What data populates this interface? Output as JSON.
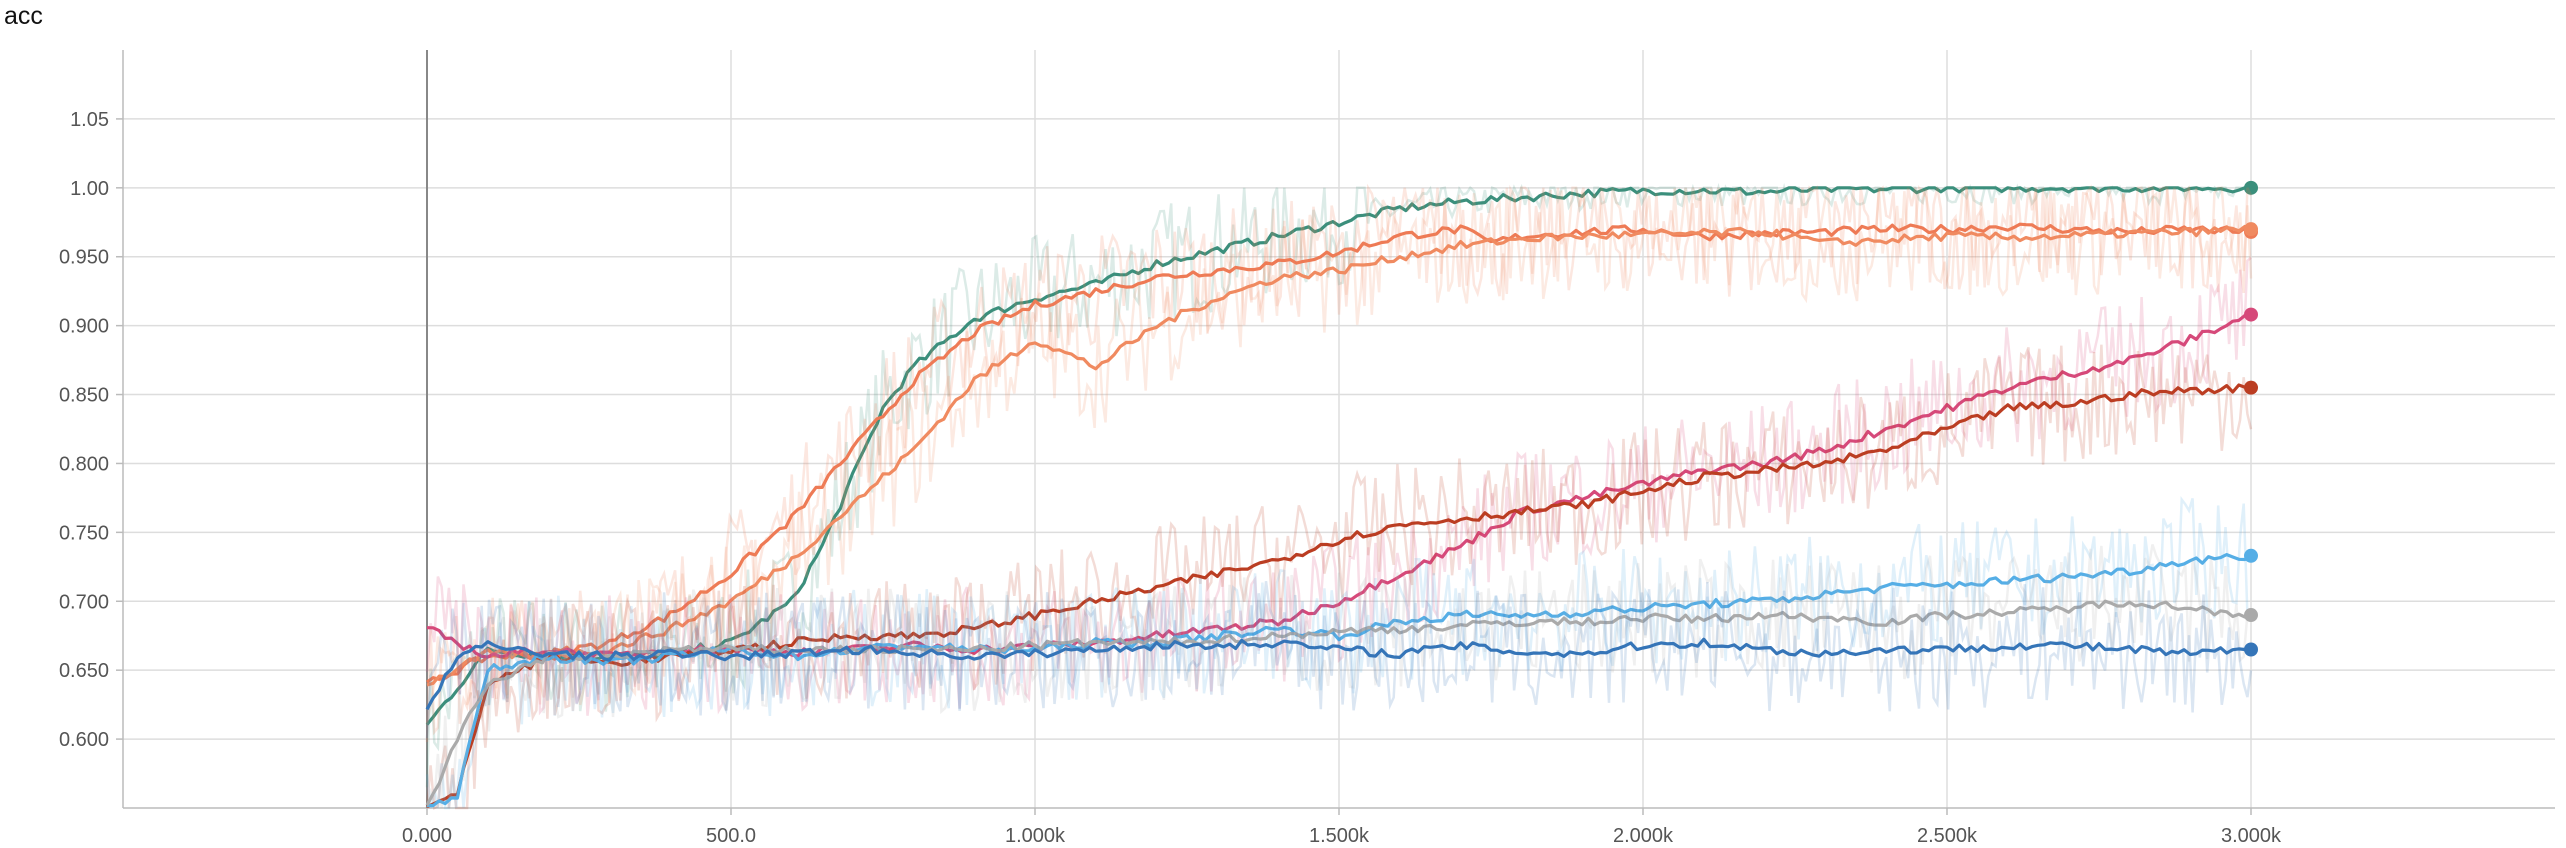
{
  "chart_data": {
    "type": "line",
    "title": "acc",
    "xlabel": "",
    "ylabel": "",
    "xlim": [
      -500,
      3500
    ],
    "ylim": [
      0.55,
      1.1
    ],
    "x_tick_values": [
      0,
      500,
      1000,
      1500,
      2000,
      2500,
      3000
    ],
    "x_tick_labels": [
      "0.000",
      "500.0",
      "1.000k",
      "1.500k",
      "2.000k",
      "2.500k",
      "3.000k"
    ],
    "y_tick_values": [
      0.6,
      0.65,
      0.7,
      0.75,
      0.8,
      0.85,
      0.9,
      0.95,
      1.0,
      1.05
    ],
    "y_tick_labels": [
      "0.600",
      "0.650",
      "0.700",
      "0.750",
      "0.800",
      "0.850",
      "0.900",
      "0.950",
      "1.00",
      "1.05"
    ],
    "grid": true,
    "series": [
      {
        "color": "#3b8f7c",
        "x": [
          0,
          100,
          200,
          300,
          400,
          500,
          600,
          650,
          700,
          750,
          800,
          900,
          1000,
          1100,
          1200,
          1300,
          1400,
          1500,
          1600,
          1700,
          1800,
          1900,
          2000,
          2100,
          2200,
          2300,
          2400,
          2500,
          2600,
          2700,
          2800,
          2900,
          3000
        ],
        "y": [
          0.61,
          0.665,
          0.66,
          0.66,
          0.662,
          0.67,
          0.7,
          0.74,
          0.79,
          0.84,
          0.87,
          0.905,
          0.92,
          0.93,
          0.945,
          0.955,
          0.965,
          0.975,
          0.985,
          0.99,
          0.993,
          0.996,
          0.998,
          0.998,
          0.997,
          0.999,
          0.999,
          1.0,
          1.0,
          1.0,
          1.0,
          1.0,
          1.0
        ]
      },
      {
        "color": "#ee7a55",
        "x": [
          0,
          100,
          200,
          300,
          400,
          500,
          600,
          700,
          800,
          900,
          1000,
          1100,
          1200,
          1300,
          1400,
          1500,
          1600,
          1700,
          1750,
          1800,
          1900,
          2000,
          2100,
          2200,
          2300,
          2400,
          2500,
          2600,
          2700,
          2800,
          2900,
          3000
        ],
        "y": [
          0.64,
          0.66,
          0.662,
          0.67,
          0.69,
          0.72,
          0.76,
          0.81,
          0.86,
          0.895,
          0.915,
          0.925,
          0.935,
          0.94,
          0.945,
          0.953,
          0.965,
          0.97,
          0.96,
          0.965,
          0.968,
          0.97,
          0.965,
          0.967,
          0.968,
          0.97,
          0.97,
          0.972,
          0.97,
          0.968,
          0.97,
          0.968
        ]
      },
      {
        "color": "#f08a60",
        "x": [
          0,
          100,
          200,
          300,
          400,
          500,
          600,
          700,
          800,
          900,
          1000,
          1050,
          1100,
          1200,
          1300,
          1400,
          1500,
          1600,
          1700,
          1800,
          1900,
          2000,
          2100,
          2200,
          2300,
          2400,
          2500,
          2600,
          2700,
          2800,
          2900,
          3000
        ],
        "y": [
          0.64,
          0.662,
          0.66,
          0.665,
          0.68,
          0.7,
          0.73,
          0.77,
          0.81,
          0.86,
          0.89,
          0.88,
          0.87,
          0.9,
          0.92,
          0.935,
          0.94,
          0.95,
          0.958,
          0.963,
          0.965,
          0.966,
          0.967,
          0.968,
          0.96,
          0.962,
          0.965,
          0.964,
          0.965,
          0.967,
          0.968,
          0.97
        ]
      },
      {
        "color": "#d6497a",
        "x": [
          0,
          100,
          200,
          300,
          400,
          500,
          600,
          700,
          800,
          900,
          1000,
          1100,
          1200,
          1300,
          1400,
          1500,
          1600,
          1700,
          1800,
          1900,
          2000,
          2100,
          2200,
          2300,
          2400,
          2500,
          2600,
          2700,
          2800,
          2900,
          3000
        ],
        "y": [
          0.68,
          0.66,
          0.665,
          0.66,
          0.665,
          0.665,
          0.663,
          0.665,
          0.668,
          0.665,
          0.667,
          0.67,
          0.675,
          0.68,
          0.685,
          0.7,
          0.72,
          0.74,
          0.765,
          0.775,
          0.785,
          0.795,
          0.8,
          0.81,
          0.825,
          0.84,
          0.855,
          0.865,
          0.875,
          0.89,
          0.908
        ]
      },
      {
        "color": "#bb3d22",
        "x": [
          0,
          50,
          100,
          200,
          300,
          400,
          500,
          600,
          700,
          800,
          900,
          1000,
          1100,
          1200,
          1300,
          1400,
          1500,
          1600,
          1700,
          1800,
          1900,
          2000,
          2100,
          2200,
          2300,
          2400,
          2500,
          2600,
          2700,
          2800,
          2900,
          3000
        ],
        "y": [
          0.55,
          0.56,
          0.64,
          0.66,
          0.655,
          0.66,
          0.665,
          0.67,
          0.675,
          0.675,
          0.68,
          0.69,
          0.7,
          0.71,
          0.72,
          0.73,
          0.745,
          0.755,
          0.76,
          0.765,
          0.77,
          0.78,
          0.79,
          0.795,
          0.8,
          0.81,
          0.825,
          0.84,
          0.843,
          0.85,
          0.853,
          0.855
        ]
      },
      {
        "color": "#55aee6",
        "x": [
          0,
          50,
          100,
          200,
          300,
          400,
          500,
          600,
          700,
          800,
          900,
          1000,
          1100,
          1200,
          1300,
          1400,
          1500,
          1600,
          1700,
          1800,
          1900,
          2000,
          2100,
          2200,
          2300,
          2400,
          2500,
          2600,
          2700,
          2800,
          2900,
          3000
        ],
        "y": [
          0.55,
          0.56,
          0.65,
          0.66,
          0.655,
          0.66,
          0.665,
          0.66,
          0.665,
          0.668,
          0.665,
          0.665,
          0.67,
          0.67,
          0.675,
          0.68,
          0.675,
          0.685,
          0.69,
          0.69,
          0.692,
          0.695,
          0.698,
          0.7,
          0.705,
          0.71,
          0.712,
          0.715,
          0.718,
          0.722,
          0.73,
          0.733
        ]
      },
      {
        "color": "#aaaaaa",
        "x": [
          0,
          50,
          100,
          200,
          300,
          400,
          500,
          600,
          700,
          800,
          900,
          1000,
          1100,
          1200,
          1300,
          1400,
          1500,
          1600,
          1700,
          1800,
          1900,
          2000,
          2100,
          2200,
          2300,
          2400,
          2500,
          2600,
          2700,
          2800,
          2900,
          3000
        ],
        "y": [
          0.55,
          0.6,
          0.64,
          0.66,
          0.66,
          0.665,
          0.665,
          0.665,
          0.665,
          0.665,
          0.665,
          0.668,
          0.67,
          0.67,
          0.672,
          0.675,
          0.678,
          0.68,
          0.682,
          0.685,
          0.685,
          0.688,
          0.687,
          0.69,
          0.688,
          0.685,
          0.69,
          0.692,
          0.695,
          0.7,
          0.695,
          0.69
        ]
      },
      {
        "color": "#3575b8",
        "x": [
          0,
          50,
          100,
          200,
          300,
          400,
          500,
          600,
          700,
          800,
          900,
          1000,
          1100,
          1200,
          1300,
          1400,
          1500,
          1600,
          1700,
          1800,
          1900,
          2000,
          2100,
          2200,
          2300,
          2400,
          2500,
          2600,
          2700,
          2800,
          2900,
          3000
        ],
        "y": [
          0.62,
          0.66,
          0.668,
          0.662,
          0.66,
          0.662,
          0.66,
          0.662,
          0.665,
          0.663,
          0.66,
          0.662,
          0.665,
          0.668,
          0.668,
          0.67,
          0.665,
          0.662,
          0.668,
          0.663,
          0.662,
          0.668,
          0.67,
          0.665,
          0.662,
          0.665,
          0.665,
          0.668,
          0.668,
          0.665,
          0.662,
          0.665
        ]
      }
    ]
  }
}
